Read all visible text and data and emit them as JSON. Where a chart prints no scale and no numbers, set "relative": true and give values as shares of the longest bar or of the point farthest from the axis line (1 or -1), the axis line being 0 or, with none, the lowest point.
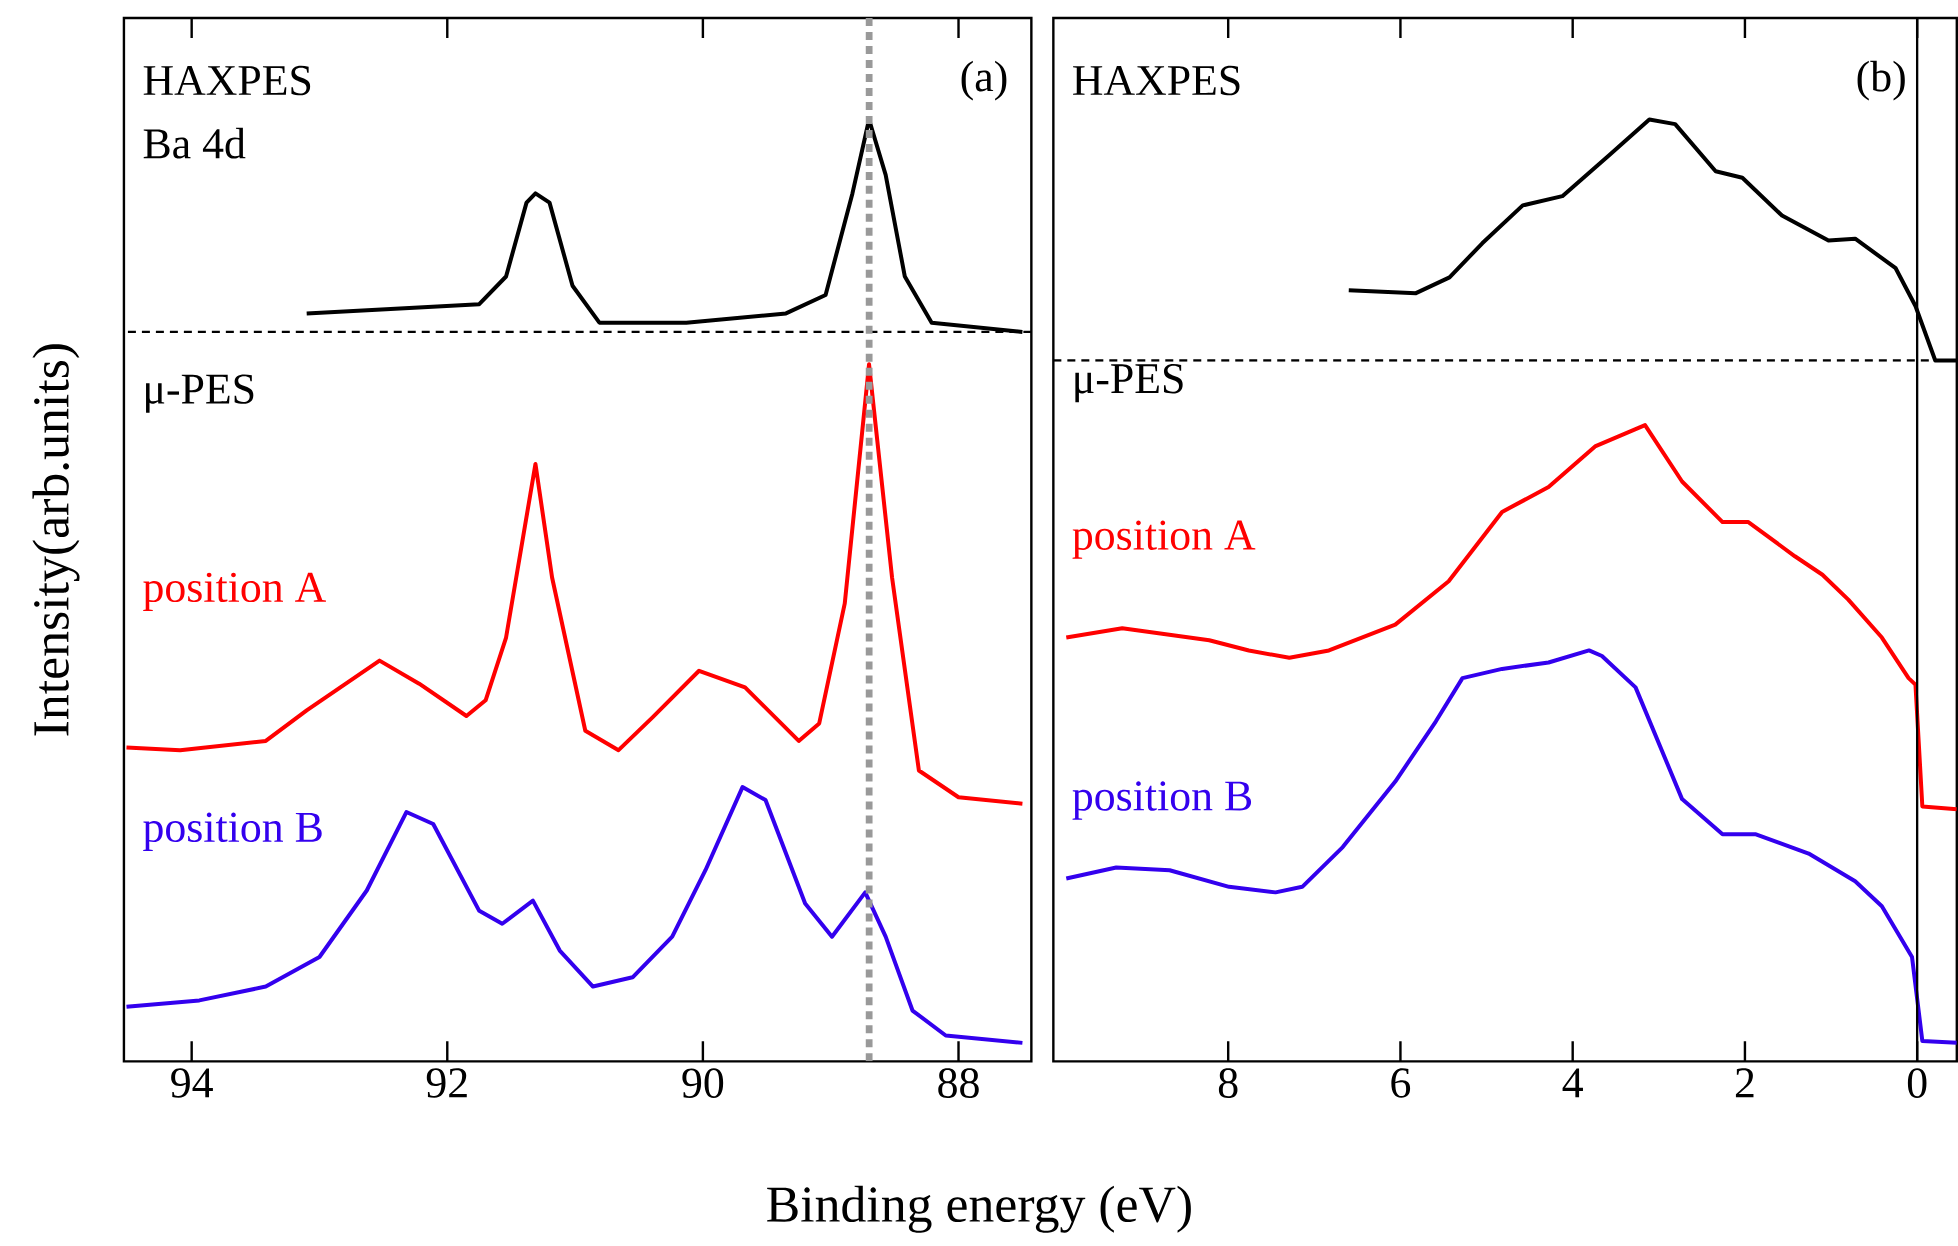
{
  "chart_data": [
    {
      "type": "line",
      "relative": true,
      "ylabel": "Intensity(arb.units)",
      "xlabel": "Binding energy (eV)",
      "xlim": [
        94.53,
        87.43
      ],
      "xticks": [
        94,
        92,
        90,
        88
      ],
      "tick_labels": "x",
      "series": [
        {
          "name": "HAXPES",
          "color": "#000000",
          "x": [
            93.1,
            91.75,
            91.54,
            91.38,
            91.31,
            91.2,
            91.02,
            90.81,
            90.13,
            89.35,
            89.04,
            88.83,
            88.7,
            88.57,
            88.42,
            88.21,
            87.5
          ],
          "values": [
            0.79,
            0.8,
            0.83,
            0.91,
            0.92,
            0.91,
            0.82,
            0.78,
            0.78,
            0.79,
            0.81,
            0.92,
            1.0,
            0.94,
            0.83,
            0.78,
            0.77
          ]
        },
        {
          "name": "position A",
          "color": "#ff0000",
          "x": [
            94.51,
            94.09,
            93.42,
            93.1,
            92.53,
            92.22,
            91.85,
            91.7,
            91.54,
            91.31,
            91.18,
            90.92,
            90.66,
            90.39,
            90.03,
            89.67,
            89.25,
            89.09,
            88.89,
            88.7,
            88.52,
            88.31,
            88.0,
            87.5
          ],
          "values": [
            0.32,
            0.317,
            0.327,
            0.36,
            0.414,
            0.389,
            0.354,
            0.371,
            0.439,
            0.627,
            0.504,
            0.338,
            0.317,
            0.353,
            0.403,
            0.385,
            0.327,
            0.346,
            0.476,
            0.735,
            0.504,
            0.295,
            0.266,
            0.259
          ]
        },
        {
          "name": "position B",
          "color": "#3300ee",
          "x": [
            94.51,
            93.94,
            93.42,
            93.0,
            92.63,
            92.32,
            92.11,
            91.75,
            91.57,
            91.33,
            91.12,
            90.86,
            90.55,
            90.24,
            89.98,
            89.69,
            89.51,
            89.2,
            88.99,
            88.73,
            88.57,
            88.36,
            88.1,
            87.5
          ],
          "values": [
            0.039,
            0.046,
            0.061,
            0.093,
            0.165,
            0.25,
            0.237,
            0.143,
            0.129,
            0.154,
            0.1,
            0.061,
            0.071,
            0.115,
            0.187,
            0.277,
            0.263,
            0.151,
            0.115,
            0.163,
            0.115,
            0.035,
            0.008,
            0
          ]
        }
      ],
      "ref_lines": [
        {
          "axis": "y",
          "value": 0.77,
          "line_style": "dashed",
          "color": "#000000"
        },
        {
          "axis": "x",
          "value": 88.7,
          "line_style": "dotted",
          "color": "#999999"
        }
      ],
      "annotations": [
        "Ba 4d",
        "μ-PES",
        "(a)"
      ]
    },
    {
      "type": "line",
      "relative": true,
      "xlim": [
        10.03,
        -0.46
      ],
      "xticks": [
        8,
        6,
        4,
        2,
        0
      ],
      "tick_labels": "x",
      "series": [
        {
          "name": "HAXPES",
          "color": "#000000",
          "x": [
            6.6,
            5.82,
            5.43,
            5.05,
            4.58,
            4.12,
            3.58,
            3.11,
            2.81,
            2.34,
            2.03,
            1.57,
            1.03,
            0.72,
            0.25,
            0.02,
            -0.21,
            -0.46
          ],
          "values": [
            0.815,
            0.812,
            0.829,
            0.866,
            0.907,
            0.917,
            0.961,
            1.0,
            0.995,
            0.944,
            0.937,
            0.896,
            0.869,
            0.871,
            0.839,
            0.798,
            0.739,
            0.739
          ]
        },
        {
          "name": "position A",
          "color": "#ff0000",
          "x": [
            9.88,
            9.23,
            8.22,
            7.76,
            7.29,
            6.83,
            6.06,
            5.44,
            4.82,
            4.28,
            3.74,
            3.16,
            2.73,
            2.26,
            1.96,
            1.42,
            1.1,
            0.8,
            0.41,
            0.1,
            0.02,
            -0.06,
            -0.46
          ],
          "values": [
            0.439,
            0.449,
            0.436,
            0.425,
            0.417,
            0.425,
            0.453,
            0.5,
            0.575,
            0.602,
            0.646,
            0.669,
            0.608,
            0.564,
            0.564,
            0.527,
            0.507,
            0.48,
            0.439,
            0.395,
            0.388,
            0.256,
            0.253
          ]
        },
        {
          "name": "position B",
          "color": "#3300ee",
          "x": [
            9.88,
            9.3,
            8.68,
            7.99,
            7.45,
            7.14,
            6.67,
            6.06,
            5.59,
            5.28,
            4.82,
            4.28,
            3.81,
            3.66,
            3.27,
            2.73,
            2.26,
            1.88,
            1.26,
            0.72,
            0.41,
            0.06,
            -0.06,
            -0.46
          ],
          "values": [
            0.178,
            0.19,
            0.187,
            0.169,
            0.163,
            0.169,
            0.212,
            0.283,
            0.348,
            0.395,
            0.405,
            0.412,
            0.425,
            0.419,
            0.385,
            0.264,
            0.226,
            0.226,
            0.205,
            0.175,
            0.148,
            0.093,
            0.002,
            0
          ]
        }
      ],
      "ref_lines": [
        {
          "axis": "y",
          "value": 0.739,
          "line_style": "dashed",
          "color": "#000000"
        },
        {
          "axis": "x",
          "value": 0,
          "line_style": "solid",
          "color": "#000000"
        }
      ],
      "annotations": [
        "μ-PES",
        "(b)"
      ]
    }
  ]
}
